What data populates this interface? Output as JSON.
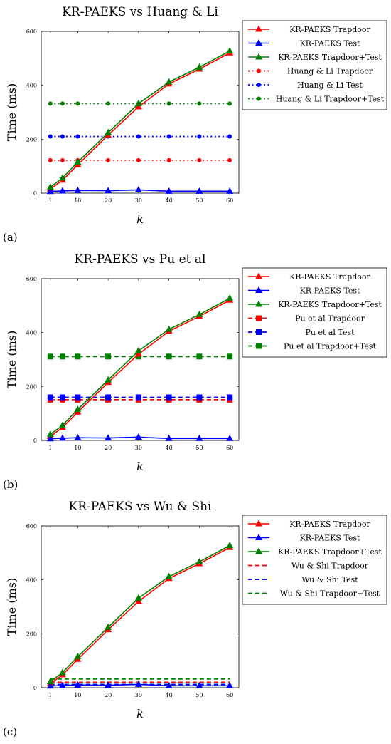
{
  "chart_data": [
    {
      "type": "line",
      "panel_label": "(a)",
      "title": "KR-PAEKS vs Huang & Li",
      "xlabel": "k",
      "ylabel": "Time (ms)",
      "x": [
        1,
        5,
        10,
        20,
        30,
        40,
        50,
        60
      ],
      "xticks": [
        "1",
        "10",
        "20",
        "30",
        "40",
        "50",
        "60"
      ],
      "ylim": [
        0,
        600
      ],
      "yticks": [
        "0",
        "200",
        "400",
        "600"
      ],
      "legend_position": "right",
      "series": [
        {
          "name": "KR-PAEKS Trapdoor",
          "color": "#ff0000",
          "style": "solid",
          "marker": "triangle",
          "values": [
            15,
            48,
            105,
            215,
            320,
            405,
            460,
            520
          ]
        },
        {
          "name": "KR-PAEKS Test",
          "color": "#0000ff",
          "style": "solid",
          "marker": "triangle",
          "values": [
            6,
            8,
            10,
            9,
            12,
            7,
            7,
            7
          ]
        },
        {
          "name": "KR-PAEKS Trapdoor+Test",
          "color": "#008000",
          "style": "solid",
          "marker": "triangle",
          "values": [
            22,
            56,
            115,
            224,
            332,
            412,
            467,
            527
          ]
        },
        {
          "name": "Huang & Li Trapdoor",
          "color": "#ff0000",
          "style": "dotted",
          "marker": "circle",
          "values": [
            122,
            122,
            122,
            122,
            122,
            122,
            122,
            122
          ]
        },
        {
          "name": "Huang & Li Test",
          "color": "#0000ff",
          "style": "dotted",
          "marker": "circle",
          "values": [
            210,
            210,
            210,
            210,
            210,
            210,
            210,
            210
          ]
        },
        {
          "name": "Huang & Li Trapdoor+Test",
          "color": "#008000",
          "style": "dotted",
          "marker": "circle",
          "values": [
            332,
            332,
            332,
            332,
            332,
            332,
            332,
            332
          ]
        }
      ]
    },
    {
      "type": "line",
      "panel_label": "(b)",
      "title": "KR-PAEKS vs Pu et al",
      "xlabel": "k",
      "ylabel": "Time (ms)",
      "x": [
        1,
        5,
        10,
        20,
        30,
        40,
        50,
        60
      ],
      "xticks": [
        "1",
        "10",
        "20",
        "30",
        "40",
        "50",
        "60"
      ],
      "ylim": [
        0,
        600
      ],
      "yticks": [
        "0",
        "200",
        "400",
        "600"
      ],
      "legend_position": "right",
      "series": [
        {
          "name": "KR-PAEKS Trapdoor",
          "color": "#ff0000",
          "style": "solid",
          "marker": "triangle",
          "values": [
            15,
            48,
            105,
            215,
            320,
            405,
            460,
            520
          ]
        },
        {
          "name": "KR-PAEKS Test",
          "color": "#0000ff",
          "style": "solid",
          "marker": "triangle",
          "values": [
            6,
            8,
            10,
            9,
            12,
            7,
            7,
            7
          ]
        },
        {
          "name": "KR-PAEKS Trapdoor+Test",
          "color": "#008000",
          "style": "solid",
          "marker": "triangle",
          "values": [
            22,
            56,
            115,
            224,
            332,
            412,
            467,
            527
          ]
        },
        {
          "name": "Pu et al Trapdoor",
          "color": "#ff0000",
          "style": "dashed",
          "marker": "square",
          "values": [
            151,
            151,
            151,
            151,
            151,
            151,
            151,
            151
          ]
        },
        {
          "name": "Pu et al Test",
          "color": "#0000ff",
          "style": "dashed",
          "marker": "square",
          "values": [
            160,
            160,
            160,
            160,
            160,
            160,
            160,
            160
          ]
        },
        {
          "name": "Pu et al Trapdoor+Test",
          "color": "#008000",
          "style": "dashed",
          "marker": "square",
          "values": [
            311,
            311,
            311,
            311,
            311,
            311,
            311,
            311
          ]
        }
      ]
    },
    {
      "type": "line",
      "panel_label": "(c)",
      "title": "KR-PAEKS vs Wu & Shi",
      "xlabel": "k",
      "ylabel": "Time (ms)",
      "x": [
        1,
        5,
        10,
        20,
        30,
        40,
        50,
        60
      ],
      "xticks": [
        "1",
        "10",
        "20",
        "30",
        "40",
        "50",
        "60"
      ],
      "ylim": [
        0,
        600
      ],
      "yticks": [
        "0",
        "200",
        "400",
        "600"
      ],
      "legend_position": "right",
      "series": [
        {
          "name": "KR-PAEKS Trapdoor",
          "color": "#ff0000",
          "style": "solid",
          "marker": "triangle",
          "values": [
            15,
            48,
            105,
            215,
            320,
            405,
            460,
            520
          ]
        },
        {
          "name": "KR-PAEKS Test",
          "color": "#0000ff",
          "style": "solid",
          "marker": "triangle",
          "values": [
            6,
            8,
            10,
            9,
            12,
            7,
            7,
            7
          ]
        },
        {
          "name": "KR-PAEKS Trapdoor+Test",
          "color": "#008000",
          "style": "solid",
          "marker": "triangle",
          "values": [
            22,
            56,
            115,
            224,
            332,
            412,
            467,
            527
          ]
        },
        {
          "name": "Wu & Shi Trapdoor",
          "color": "#ff0000",
          "style": "dashed",
          "marker": "none",
          "values": [
            20,
            20,
            20,
            20,
            20,
            20,
            20,
            20
          ]
        },
        {
          "name": "Wu & Shi Test",
          "color": "#0000ff",
          "style": "dashed",
          "marker": "none",
          "values": [
            12,
            12,
            12,
            12,
            12,
            12,
            12,
            12
          ]
        },
        {
          "name": "Wu & Shi Trapdoor+Test",
          "color": "#008000",
          "style": "dashed",
          "marker": "none",
          "values": [
            32,
            32,
            32,
            32,
            32,
            32,
            32,
            32
          ]
        }
      ]
    }
  ]
}
